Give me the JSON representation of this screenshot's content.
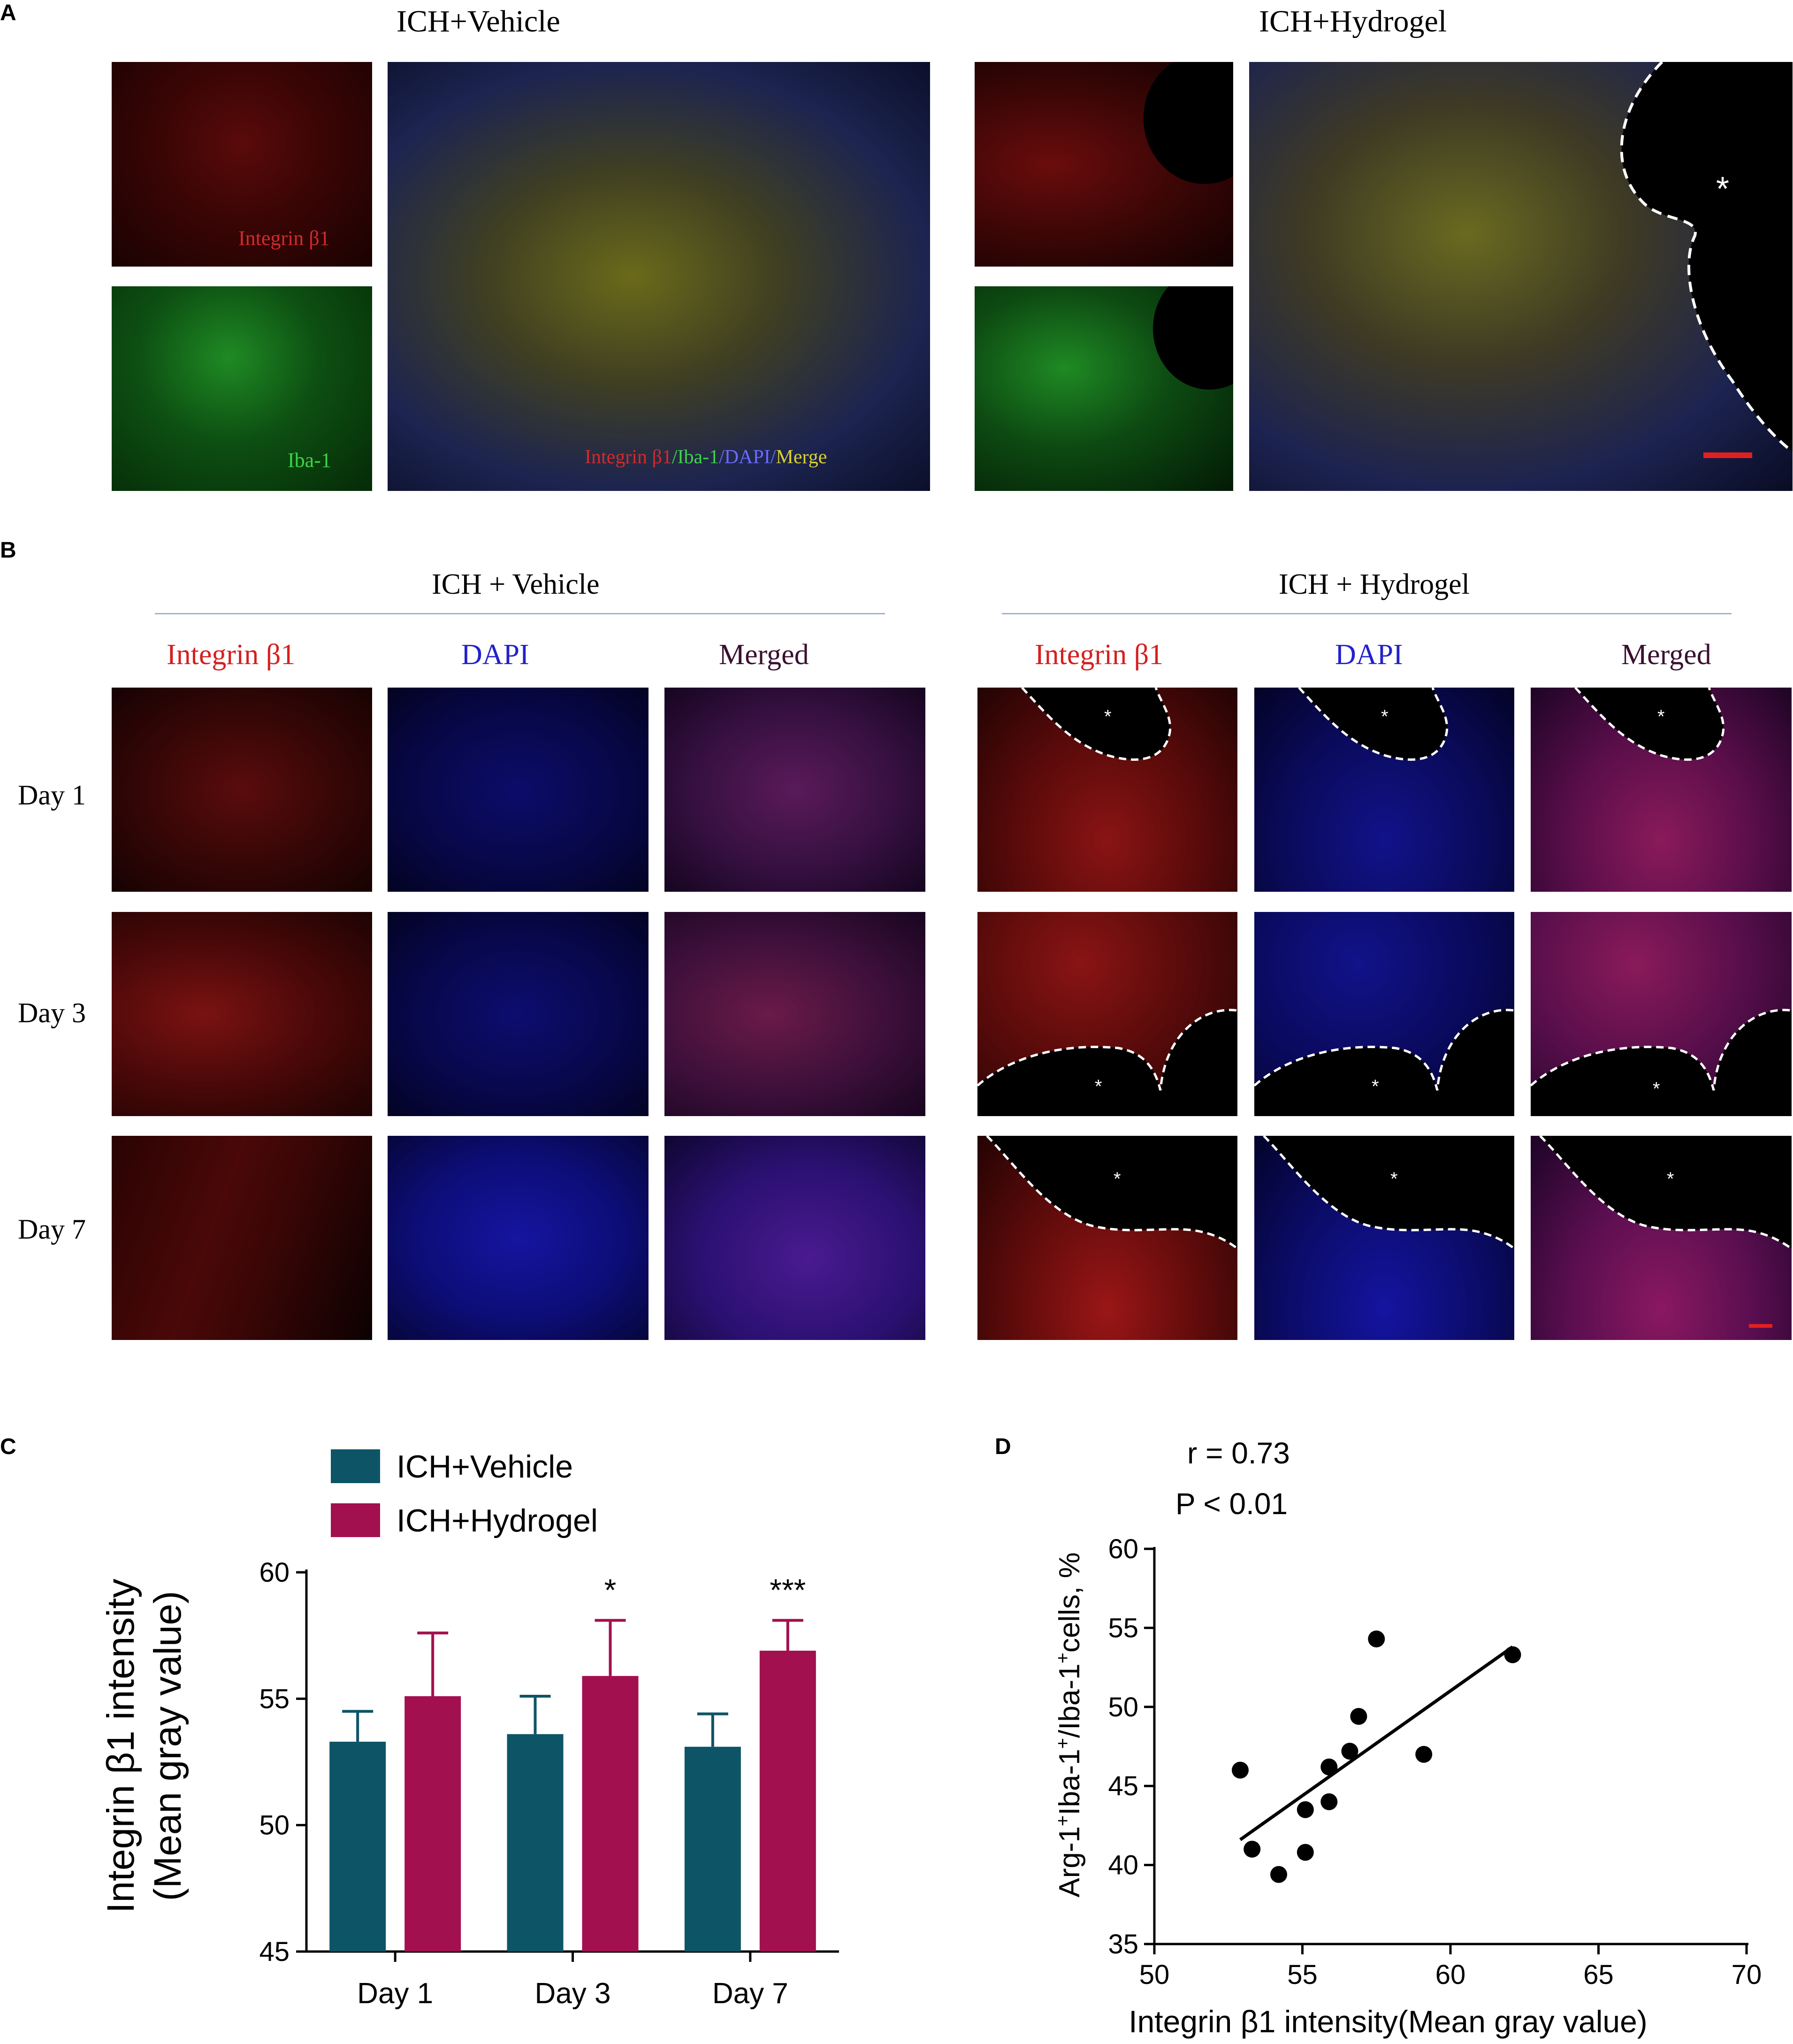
{
  "panels": {
    "A": {
      "letter": "A",
      "group_titles": [
        "ICH+Vehicle",
        "ICH+Hydrogel"
      ],
      "small_labels": {
        "integrin": "Integrin β1",
        "iba": "Iba-1"
      },
      "merge_label": {
        "part1": "Integrin β1",
        "part2": "/Iba-1",
        "part3": "/DAPI/",
        "part4": "Merge"
      },
      "asterisk": "*",
      "colors": {
        "red": "#cc2020",
        "green": "#2fbf3a",
        "blue": "#3a3ad6",
        "yellow": "#d9d12c"
      }
    },
    "B": {
      "letter": "B",
      "group_titles": [
        "ICH + Vehicle",
        "ICH + Hydrogel"
      ],
      "columns": [
        "Integrin β1",
        "DAPI",
        "Merged"
      ],
      "column_colors": [
        "#d42020",
        "#2222cc",
        "#3a1030"
      ],
      "rows": [
        "Day 1",
        "Day 3",
        "Day 7"
      ],
      "asterisk": "*"
    },
    "C": {
      "letter": "C",
      "ylabel_line1": "Integrin β1 intensity",
      "ylabel_line2": "(Mean gray value)",
      "significance": [
        "",
        "*",
        "***"
      ]
    },
    "D": {
      "letter": "D",
      "stat_r": "r = 0.73",
      "stat_p": "P < 0.01",
      "xlabel": "Integrin β1 intensity(Mean gray value)",
      "ylabel_parts": [
        "Arg-1",
        "+",
        "Iba-1",
        "+",
        "/Iba-1",
        "+",
        "cells, %"
      ]
    }
  },
  "chart_data": [
    {
      "type": "bar",
      "panel": "C",
      "categories": [
        "Day 1",
        "Day 3",
        "Day 7"
      ],
      "series": [
        {
          "name": "ICH+Vehicle",
          "color": "#0d5566",
          "values": [
            53.3,
            53.6,
            53.1
          ],
          "error": [
            1.2,
            1.5,
            1.3
          ]
        },
        {
          "name": "ICH+Hydrogel",
          "color": "#a3104f",
          "values": [
            55.1,
            55.9,
            56.9
          ],
          "error": [
            2.5,
            2.2,
            1.2
          ]
        }
      ],
      "ylim": [
        45,
        60
      ],
      "yticks": [
        45,
        50,
        55,
        60
      ],
      "legend_position": "top-left",
      "grid": false
    },
    {
      "type": "scatter",
      "panel": "D",
      "x": [
        52.9,
        53.3,
        54.2,
        55.1,
        55.1,
        55.9,
        55.9,
        56.6,
        56.9,
        57.5,
        59.1,
        62.1
      ],
      "y": [
        46.0,
        41.0,
        39.4,
        40.8,
        43.5,
        46.2,
        44.0,
        47.2,
        49.4,
        54.3,
        47.0,
        53.3
      ],
      "fit_line": {
        "x": [
          52.9,
          62.1
        ],
        "y": [
          41.6,
          53.8
        ]
      },
      "xlim": [
        50,
        70
      ],
      "ylim": [
        35,
        60
      ],
      "xticks": [
        50,
        55,
        60,
        65,
        70
      ],
      "yticks": [
        35,
        40,
        45,
        50,
        55,
        60
      ],
      "grid": false
    }
  ]
}
